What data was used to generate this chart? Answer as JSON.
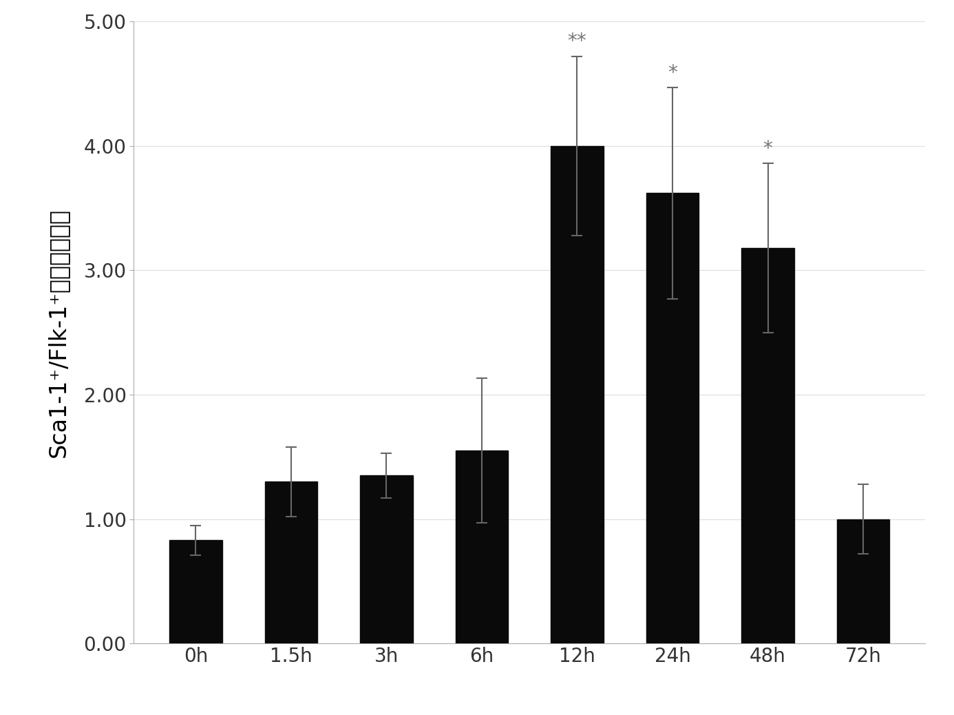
{
  "categories": [
    "0h",
    "1.5h",
    "3h",
    "6h",
    "12h",
    "24h",
    "48h",
    "72h"
  ],
  "values": [
    0.83,
    1.3,
    1.35,
    1.55,
    4.0,
    3.62,
    3.18,
    1.0
  ],
  "errors": [
    0.12,
    0.28,
    0.18,
    0.58,
    0.72,
    0.85,
    0.68,
    0.28
  ],
  "bar_color": "#0a0a0a",
  "error_color": "#666666",
  "background_color": "#ffffff",
  "ylabel_latin": "Sca1-1",
  "ylabel_full": "Sca1-1⁺/Flk-1⁺细胞的百分数",
  "ylim": [
    0.0,
    5.0
  ],
  "yticks": [
    0.0,
    1.0,
    2.0,
    3.0,
    4.0,
    5.0
  ],
  "ytick_labels": [
    "0.00",
    "1.00",
    "2.00",
    "3.00",
    "4.00",
    "5.00"
  ],
  "annotation_indices": [
    4,
    5,
    6
  ],
  "annotation_texts": [
    "**",
    "*",
    "*"
  ],
  "annotation_fontsize": 20,
  "ylabel_fontsize": 24,
  "tick_fontsize": 20,
  "bar_width": 0.55,
  "axis_color": "#aaaaaa",
  "grid_color": "#dddddd",
  "spine_linewidth": 0.8
}
